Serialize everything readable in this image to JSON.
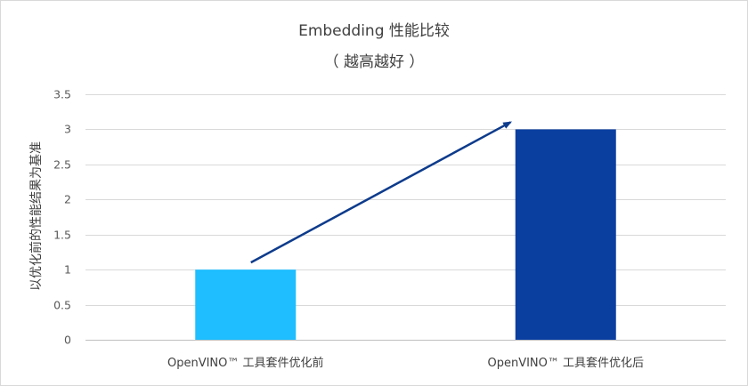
{
  "chart_data": {
    "type": "bar",
    "title": "Embedding 性能比较",
    "subtitle": "（ 越高越好 ）",
    "xlabel": "",
    "ylabel": "以优化前的性能结果为基准",
    "categories": [
      "OpenVINO™ 工具套件优化前",
      "OpenVINO™ 工具套件优化后"
    ],
    "values": [
      1,
      3
    ],
    "bar_colors": [
      "#1EBEFF",
      "#0A3FA0"
    ],
    "ylim": [
      0,
      3.5
    ],
    "yticks": [
      0,
      0.5,
      1,
      1.5,
      2,
      2.5,
      3,
      3.5
    ],
    "ytick_labels": [
      "0",
      "0.5",
      "1",
      "1.5",
      "2",
      "2.5",
      "3",
      "3.5"
    ],
    "grid": true,
    "legend": "none",
    "annotation": {
      "type": "arrow",
      "from_category": 0,
      "to_category": 1,
      "color": "#0D3B8C"
    }
  }
}
